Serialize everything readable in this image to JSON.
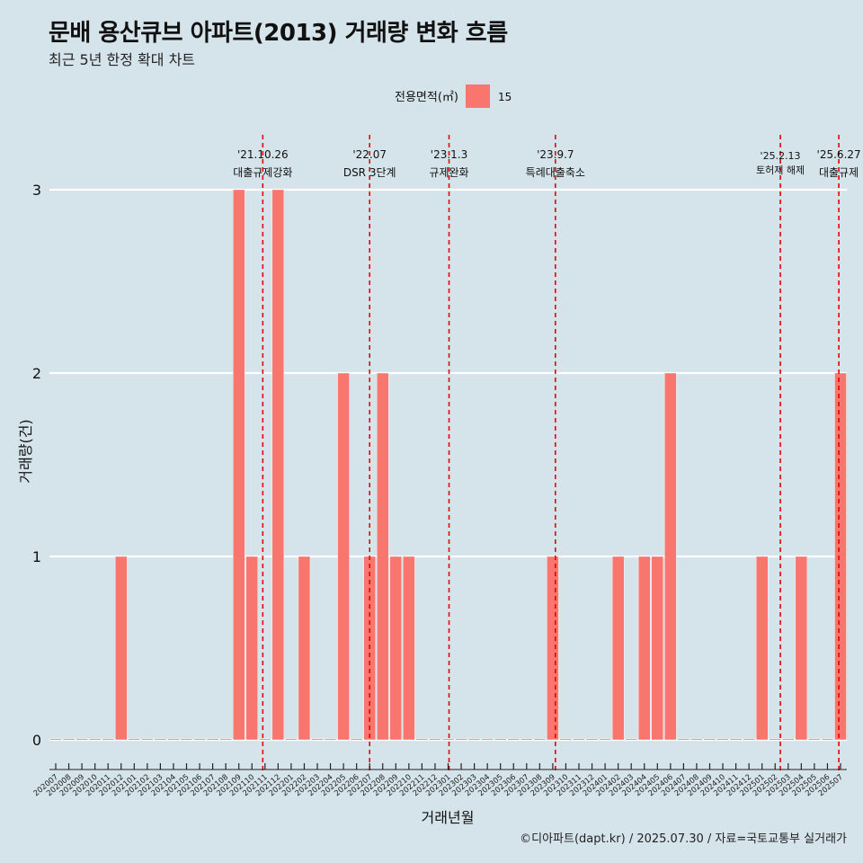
{
  "title": "문배 용산큐브 아파트(2013) 거래량 변화 흐름",
  "subtitle": "최근 5년 한정 확대 차트",
  "caption": "©디아파트(dapt.kr) / 2025.07.30 / 자료=국토교통부 실거래가",
  "colors": {
    "bar": "#f8766d",
    "event_line": "#e8000b",
    "background": "#d5e3ea",
    "grid": "#ffffff"
  },
  "chart_data": {
    "type": "bar",
    "xlabel": "거래년월",
    "ylabel": "거래량(건)",
    "ylim": [
      0,
      3
    ],
    "y_ticks": [
      0,
      1,
      2,
      3
    ],
    "grid": true,
    "legend": {
      "title": "전용면적(㎡)",
      "position": "top",
      "entries": [
        "15"
      ]
    },
    "categories": [
      "202007",
      "202008",
      "202009",
      "202010",
      "202011",
      "202012",
      "202101",
      "202102",
      "202103",
      "202104",
      "202105",
      "202106",
      "202107",
      "202108",
      "202109",
      "202110",
      "202111",
      "202112",
      "202201",
      "202202",
      "202203",
      "202204",
      "202205",
      "202206",
      "202207",
      "202208",
      "202209",
      "202210",
      "202211",
      "202212",
      "202301",
      "202302",
      "202303",
      "202304",
      "202305",
      "202306",
      "202307",
      "202308",
      "202309",
      "202310",
      "202311",
      "202312",
      "202401",
      "202402",
      "202403",
      "202404",
      "202405",
      "202406",
      "202407",
      "202408",
      "202409",
      "202410",
      "202411",
      "202412",
      "202501",
      "202502",
      "202503",
      "202504",
      "202505",
      "202506",
      "202507"
    ],
    "series": [
      {
        "name": "15",
        "values": [
          0,
          0,
          0,
          0,
          0,
          1,
          0,
          0,
          0,
          0,
          0,
          0,
          0,
          0,
          3,
          1,
          0,
          3,
          0,
          1,
          0,
          0,
          2,
          0,
          1,
          2,
          1,
          1,
          0,
          0,
          0,
          0,
          0,
          0,
          0,
          0,
          0,
          0,
          1,
          0,
          0,
          0,
          0,
          1,
          0,
          1,
          1,
          2,
          0,
          0,
          0,
          0,
          0,
          0,
          1,
          0,
          0,
          1,
          0,
          0,
          2
        ]
      }
    ],
    "annotations": [
      {
        "date": "'21.10.26",
        "label": "대출규제강화",
        "index": 15.83
      },
      {
        "date": "'22.07",
        "label": "DSR 3단계",
        "index": 24.0
      },
      {
        "date": "'23.1.3",
        "label": "규제완화",
        "index": 30.07
      },
      {
        "date": "'23.9.7",
        "label": "특례대출축소",
        "index": 38.2
      },
      {
        "date": "'25.2.13",
        "label": "토허제 해제",
        "index": 55.4
      },
      {
        "date": "'25.6.27",
        "label": "대출규제",
        "index": 59.87
      }
    ]
  }
}
